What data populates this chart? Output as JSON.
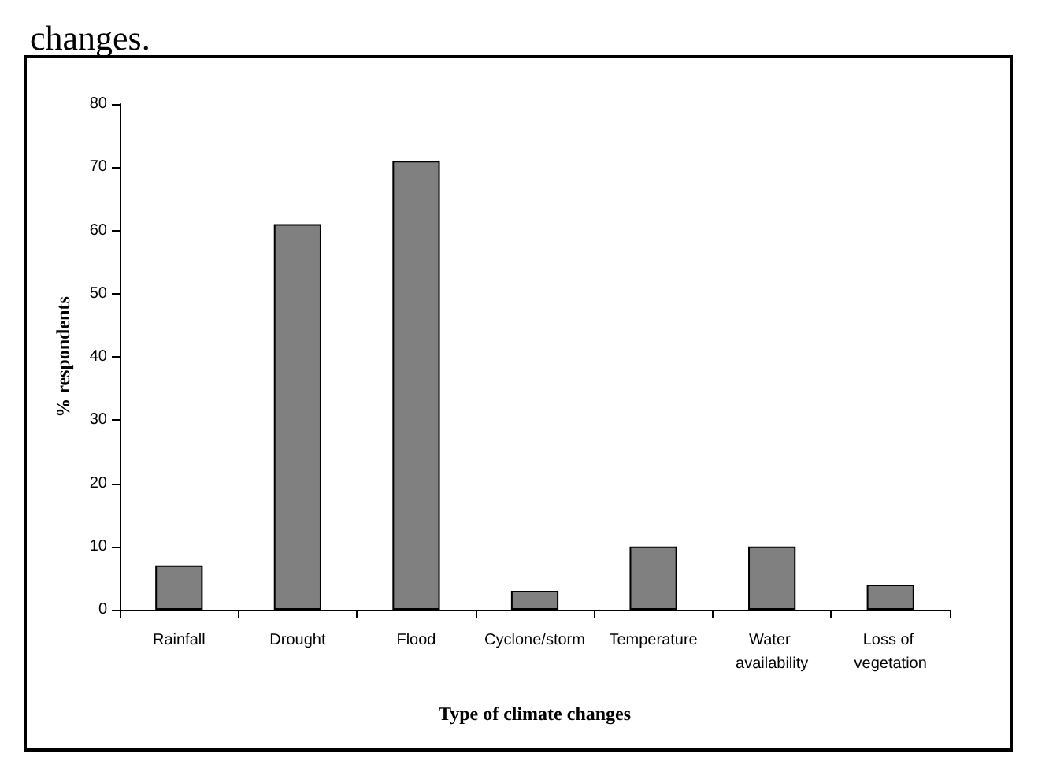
{
  "chart_data": {
    "type": "bar",
    "xlabel": "Type of climate changes",
    "ylabel": "% respondents",
    "annotations": [
      "changes."
    ],
    "categories": [
      "Rainfall",
      "Drought",
      "Flood",
      "Cyclone/storm",
      "Temperature",
      "Water availability",
      "Loss of vegetation"
    ],
    "values": [
      7,
      61,
      71,
      3,
      10,
      10,
      4
    ],
    "color": "#808080",
    "ylim": [
      0,
      80
    ],
    "yticks": [
      0,
      10,
      20,
      30,
      40,
      50,
      60,
      70,
      80
    ],
    "grid": false
  }
}
